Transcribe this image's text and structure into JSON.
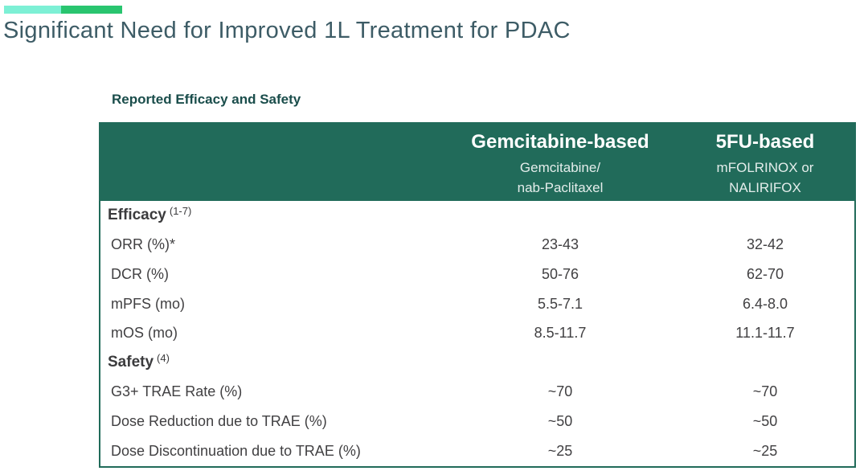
{
  "title": "Significant Need for Improved 1L Treatment for PDAC",
  "table": {
    "title": "Reported Efficacy and Safety",
    "columns": [
      {
        "header": "",
        "subheader": ""
      },
      {
        "header": "Gemcitabine-based",
        "subheader": "Gemcitabine/\nnab-Paclitaxel"
      },
      {
        "header": "5FU-based",
        "subheader": "mFOLRINOX or\nNALIRIFOX"
      }
    ],
    "rows": [
      {
        "kind": "section",
        "label": "Efficacy",
        "superscript": "(1-7)",
        "values": [
          "",
          ""
        ]
      },
      {
        "kind": "data",
        "label": "ORR (%)*",
        "values": [
          "23-43",
          "32-42"
        ]
      },
      {
        "kind": "data",
        "label": "DCR (%)",
        "values": [
          "50-76",
          "62-70"
        ]
      },
      {
        "kind": "data",
        "label": "mPFS (mo)",
        "values": [
          "5.5-7.1",
          "6.4-8.0"
        ]
      },
      {
        "kind": "data",
        "label": "mOS (mo)",
        "values": [
          "8.5-11.7",
          "11.1-11.7"
        ]
      },
      {
        "kind": "section",
        "label": "Safety",
        "superscript": "(4)",
        "values": [
          "",
          ""
        ]
      },
      {
        "kind": "data",
        "label": "G3+ TRAE Rate (%)",
        "values": [
          "~70",
          "~70"
        ]
      },
      {
        "kind": "data",
        "label": "Dose Reduction due to TRAE (%)",
        "values": [
          "~50",
          "~50"
        ]
      },
      {
        "kind": "data",
        "label": "Dose Discontinuation due to TRAE (%)",
        "values": [
          "~25",
          "~25"
        ]
      }
    ]
  },
  "colors": {
    "header_green": "#216b5a",
    "accent_light": "#7df0d5",
    "accent_green": "#29c56f",
    "title_text": "#3d5c66",
    "table_title_text": "#1a4d4b",
    "body_text": "#414042"
  }
}
